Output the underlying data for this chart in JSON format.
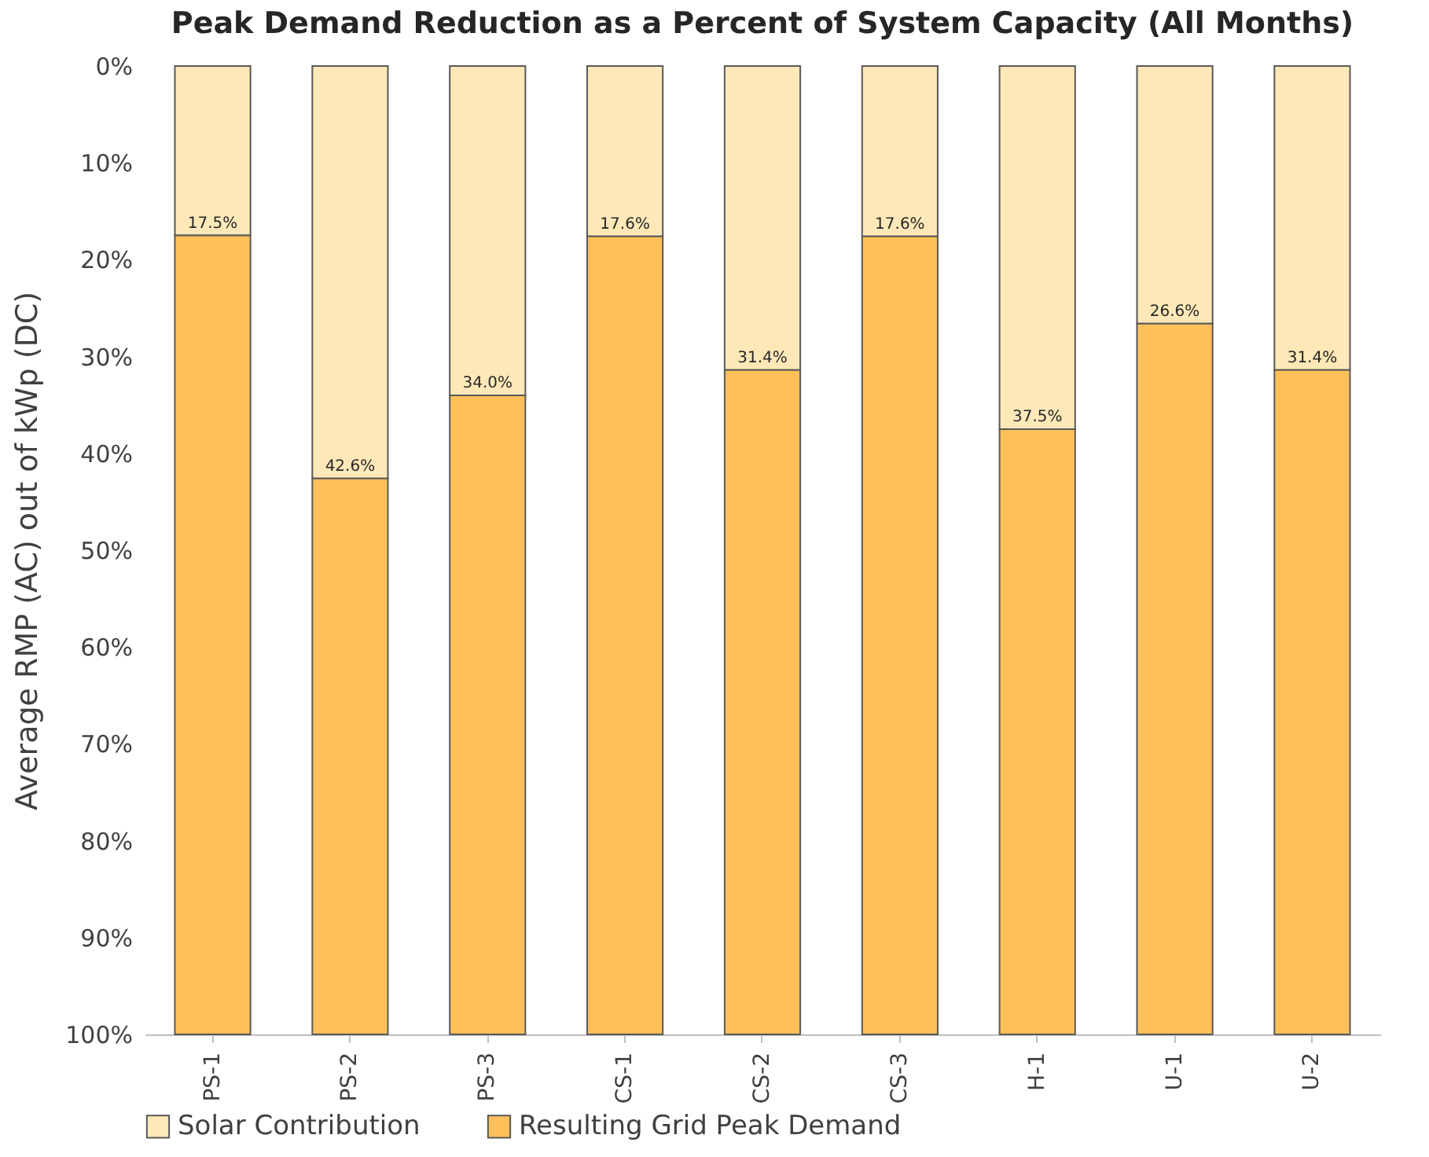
{
  "chart_data": {
    "type": "bar",
    "title": "Peak Demand Reduction as a Percent of System Capacity (All Months)",
    "ylabel": "Average RMP (AC) out of kWp (DC)",
    "categories": [
      "PS-1",
      "PS-2",
      "PS-3",
      "CS-1",
      "CS-2",
      "CS-3",
      "H-1",
      "U-1",
      "U-2"
    ],
    "stacked": true,
    "series": [
      {
        "name": "Solar Contribution",
        "color": "#ffe8b8",
        "values": [
          17.5,
          42.6,
          34.0,
          17.6,
          31.4,
          17.6,
          37.5,
          26.6,
          31.4
        ],
        "value_labels": [
          "17.5%",
          "42.6%",
          "34.0%",
          "17.6%",
          "31.4%",
          "17.6%",
          "37.5%",
          "26.6%",
          "31.4%"
        ]
      },
      {
        "name": "Resulting Grid Peak Demand",
        "color": "#ffc05a",
        "values": [
          82.5,
          57.4,
          66.0,
          82.4,
          68.6,
          82.4,
          62.5,
          73.4,
          68.6
        ]
      }
    ],
    "ylim": [
      100,
      0
    ],
    "yticks": [
      {
        "value": 0,
        "label": "0%"
      },
      {
        "value": 10,
        "label": "10%"
      },
      {
        "value": 20,
        "label": "20%"
      },
      {
        "value": 30,
        "label": "30%"
      },
      {
        "value": 40,
        "label": "40%"
      },
      {
        "value": 50,
        "label": "50%"
      },
      {
        "value": 60,
        "label": "60%"
      },
      {
        "value": 70,
        "label": "70%"
      },
      {
        "value": 80,
        "label": "80%"
      },
      {
        "value": 90,
        "label": "90%"
      },
      {
        "value": 100,
        "label": "100%"
      }
    ],
    "grid": false,
    "legend": "bottom"
  }
}
